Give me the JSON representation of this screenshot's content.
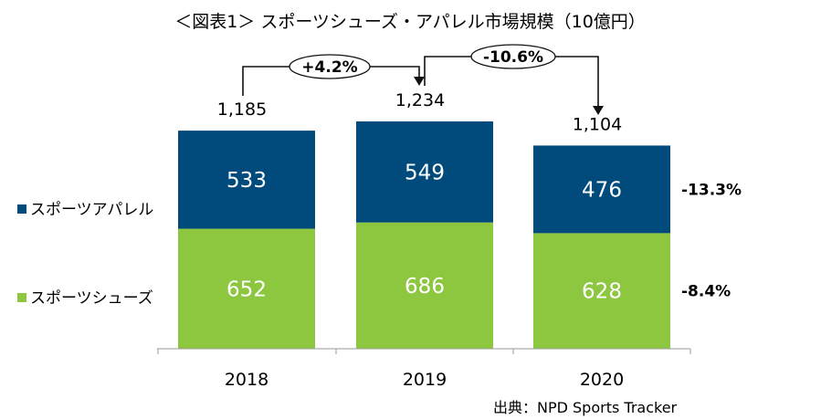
{
  "chart_data": {
    "type": "bar",
    "stacked": true,
    "title": "＜図表1＞ スポーツシューズ・アパレル市場規模（10億円）",
    "categories": [
      "2018",
      "2019",
      "2020"
    ],
    "series": [
      {
        "name": "スポーツシューズ",
        "values": [
          652,
          686,
          628
        ],
        "color": "#8dc63f",
        "change_label": "-8.4%"
      },
      {
        "name": "スポーツアパレル",
        "values": [
          533,
          549,
          476
        ],
        "color": "#004b7c",
        "change_label": "-13.3%"
      }
    ],
    "totals": [
      "1,185",
      "1,234",
      "1,104"
    ],
    "growth_annotations": [
      {
        "from": "2018",
        "to": "2019",
        "label": "+4.2%"
      },
      {
        "from": "2019",
        "to": "2020",
        "label": "-10.6%"
      }
    ],
    "legend_position": "left",
    "ylim": [
      0,
      1400
    ],
    "grid": false,
    "source": "出典：NPD Sports Tracker"
  }
}
